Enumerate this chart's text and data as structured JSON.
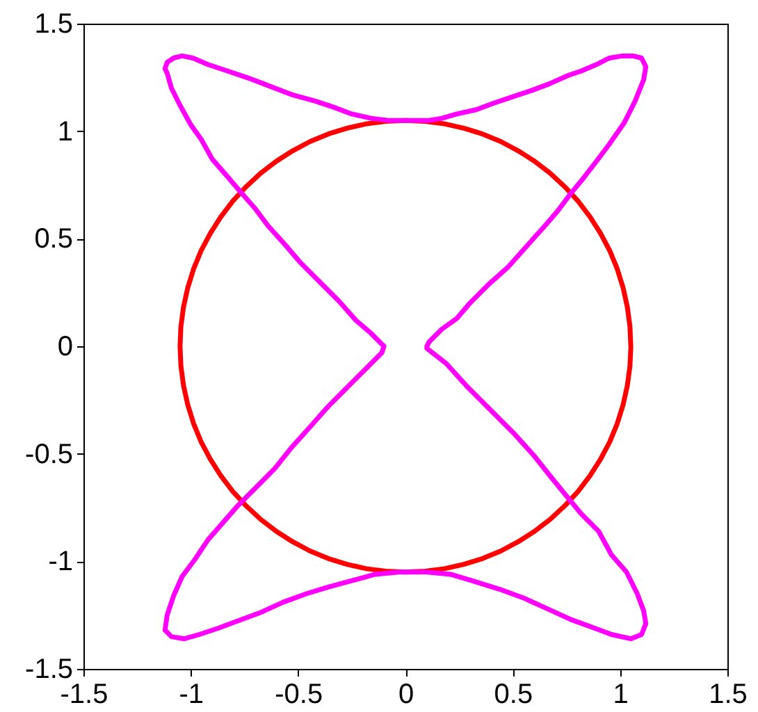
{
  "chart_data": {
    "type": "line",
    "xlim": [
      -1.5,
      1.5
    ],
    "ylim": [
      -1.5,
      1.5
    ],
    "xticks": [
      -1.5,
      -1,
      -0.5,
      0,
      0.5,
      1,
      1.5
    ],
    "yticks": [
      -1.5,
      -1,
      -0.5,
      0,
      0.5,
      1,
      1.5
    ],
    "grid": false,
    "marker": "none",
    "line_style": "solid",
    "series": [
      {
        "color": "#ff0000",
        "x": [
          1.05,
          1.046,
          1.034,
          1.014,
          0.987,
          0.952,
          0.909,
          0.86,
          0.804,
          0.742,
          0.675,
          0.602,
          0.525,
          0.444,
          0.359,
          0.272,
          0.182,
          0.092,
          0,
          -0.092,
          -0.182,
          -0.272,
          -0.359,
          -0.444,
          -0.525,
          -0.602,
          -0.675,
          -0.742,
          -0.804,
          -0.86,
          -0.909,
          -0.952,
          -0.987,
          -1.014,
          -1.034,
          -1.046,
          -1.05,
          -1.046,
          -1.034,
          -1.014,
          -0.987,
          -0.952,
          -0.909,
          -0.86,
          -0.804,
          -0.742,
          -0.675,
          -0.602,
          -0.525,
          -0.444,
          -0.359,
          -0.272,
          -0.182,
          -0.092,
          0,
          0.092,
          0.182,
          0.272,
          0.359,
          0.444,
          0.525,
          0.602,
          0.675,
          0.742,
          0.804,
          0.86,
          0.909,
          0.952,
          0.987,
          1.014,
          1.034,
          1.046,
          1.05
        ],
        "values": [
          0,
          0.092,
          0.182,
          0.272,
          0.359,
          0.444,
          0.525,
          0.602,
          0.675,
          0.742,
          0.804,
          0.86,
          0.909,
          0.952,
          0.987,
          1.014,
          1.034,
          1.046,
          1.05,
          1.046,
          1.034,
          1.014,
          0.987,
          0.952,
          0.909,
          0.86,
          0.804,
          0.742,
          0.675,
          0.602,
          0.525,
          0.444,
          0.359,
          0.272,
          0.182,
          0.092,
          0,
          -0.092,
          -0.182,
          -0.272,
          -0.359,
          -0.444,
          -0.525,
          -0.602,
          -0.675,
          -0.742,
          -0.804,
          -0.86,
          -0.909,
          -0.952,
          -0.987,
          -1.014,
          -1.034,
          -1.046,
          -1.05,
          -1.046,
          -1.034,
          -1.014,
          -0.987,
          -0.952,
          -0.909,
          -0.86,
          -0.804,
          -0.742,
          -0.675,
          -0.602,
          -0.525,
          -0.444,
          -0.359,
          -0.272,
          -0.182,
          -0.092,
          -0.01
        ]
      },
      {
        "color": "#ff00ff",
        "x": [
          0.1,
          0.11,
          0.17,
          0.24,
          0.3,
          0.39,
          0.48,
          0.56,
          0.65,
          0.71,
          0.77,
          0.82,
          0.89,
          0.95,
          1.02,
          1.07,
          1.11,
          1.12,
          1.1,
          1.06,
          1.01,
          0.95,
          0.89,
          0.82,
          0.76,
          0.67,
          0.59,
          0.5,
          0.41,
          0.33,
          0.24,
          0.17,
          0.11,
          0,
          -0.08,
          -0.16,
          -0.25,
          -0.33,
          -0.42,
          -0.53,
          -0.66,
          -0.74,
          -0.83,
          -0.92,
          -0.99,
          -1.04,
          -1.08,
          -1.11,
          -1.12,
          -1.11,
          -1.09,
          -1.05,
          -1,
          -0.95,
          -0.9,
          -0.83,
          -0.77,
          -0.7,
          -0.64,
          -0.55,
          -0.49,
          -0.4,
          -0.31,
          -0.23,
          -0.16,
          -0.1,
          -0.11,
          -0.18,
          -0.27,
          -0.36,
          -0.44,
          -0.53,
          -0.61,
          -0.7,
          -0.78,
          -0.85,
          -0.92,
          -0.98,
          -1.04,
          -1.08,
          -1.11,
          -1.12,
          -1.09,
          -1.03,
          -0.96,
          -0.87,
          -0.79,
          -0.68,
          -0.57,
          -0.46,
          -0.36,
          -0.25,
          -0.14,
          -0.03,
          0.1,
          0.21,
          0.31,
          0.44,
          0.55,
          0.66,
          0.77,
          0.88,
          0.96,
          1.05,
          1.1,
          1.12,
          1.11,
          1.08,
          1.03,
          0.96,
          0.9,
          0.82,
          0.77,
          0.68,
          0.6,
          0.51,
          0.4,
          0.29,
          0.19,
          0.1
        ],
        "values": [
          0,
          0.02,
          0.08,
          0.13,
          0.2,
          0.29,
          0.37,
          0.46,
          0.56,
          0.63,
          0.71,
          0.77,
          0.86,
          0.94,
          1.04,
          1.14,
          1.24,
          1.3,
          1.34,
          1.35,
          1.35,
          1.34,
          1.31,
          1.28,
          1.26,
          1.22,
          1.19,
          1.16,
          1.13,
          1.1,
          1.08,
          1.06,
          1.05,
          1.05,
          1.05,
          1.06,
          1.08,
          1.11,
          1.14,
          1.17,
          1.22,
          1.25,
          1.28,
          1.31,
          1.34,
          1.35,
          1.34,
          1.32,
          1.29,
          1.27,
          1.2,
          1.12,
          1.03,
          0.96,
          0.87,
          0.79,
          0.72,
          0.64,
          0.56,
          0.46,
          0.39,
          0.3,
          0.21,
          0.12,
          0.06,
          0,
          -0.03,
          -0.1,
          -0.19,
          -0.28,
          -0.37,
          -0.47,
          -0.57,
          -0.66,
          -0.74,
          -0.82,
          -0.9,
          -0.99,
          -1.07,
          -1.16,
          -1.25,
          -1.32,
          -1.35,
          -1.36,
          -1.34,
          -1.31,
          -1.28,
          -1.24,
          -1.19,
          -1.15,
          -1.12,
          -1.09,
          -1.06,
          -1.05,
          -1.05,
          -1.06,
          -1.09,
          -1.13,
          -1.17,
          -1.22,
          -1.27,
          -1.31,
          -1.34,
          -1.36,
          -1.34,
          -1.29,
          -1.23,
          -1.15,
          -1.05,
          -0.97,
          -0.86,
          -0.78,
          -0.72,
          -0.61,
          -0.51,
          -0.41,
          -0.3,
          -0.19,
          -0.08,
          -0.01
        ]
      }
    ]
  }
}
